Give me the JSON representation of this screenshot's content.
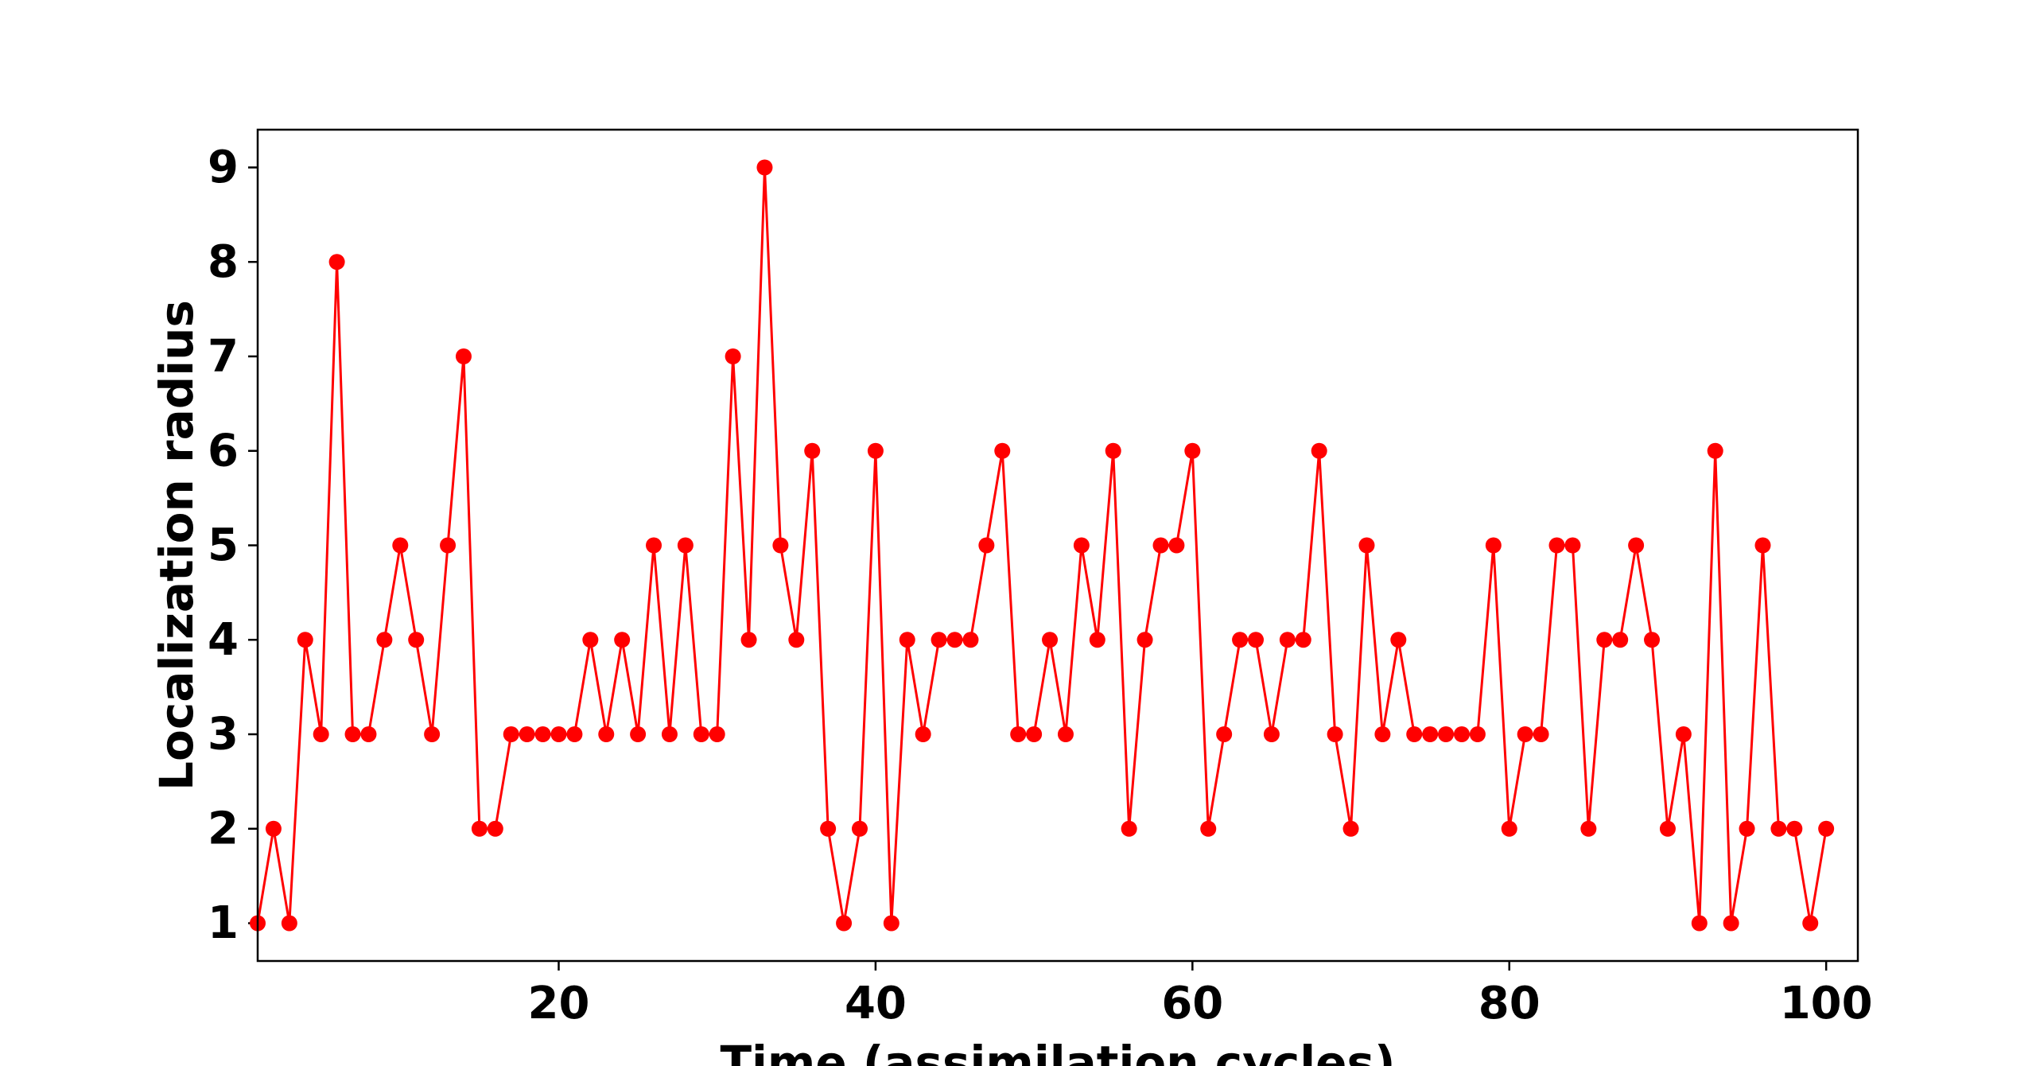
{
  "chart_data": {
    "type": "line",
    "title": "",
    "xlabel": "Time (assimilation cycles)",
    "ylabel": "Localization radius",
    "xlim": [
      1,
      102
    ],
    "ylim": [
      0.6,
      9.4
    ],
    "xticks": [
      20,
      40,
      60,
      80,
      100
    ],
    "xtick_labels": [
      "20",
      "40",
      "60",
      "80",
      "100"
    ],
    "yticks": [
      1,
      2,
      3,
      4,
      5,
      6,
      7,
      8,
      9
    ],
    "ytick_labels": [
      "1",
      "2",
      "3",
      "4",
      "5",
      "6",
      "7",
      "8",
      "9"
    ],
    "grid": false,
    "legend": "none",
    "series": [
      {
        "color": "#ff0000",
        "marker": "circle",
        "x": [
          1,
          2,
          3,
          4,
          5,
          6,
          7,
          8,
          9,
          10,
          11,
          12,
          13,
          14,
          15,
          16,
          17,
          18,
          19,
          20,
          21,
          22,
          23,
          24,
          25,
          26,
          27,
          28,
          29,
          30,
          31,
          32,
          33,
          34,
          35,
          36,
          37,
          38,
          39,
          40,
          41,
          42,
          43,
          44,
          45,
          46,
          47,
          48,
          49,
          50,
          51,
          52,
          53,
          54,
          55,
          56,
          57,
          58,
          59,
          60,
          61,
          62,
          63,
          64,
          65,
          66,
          67,
          68,
          69,
          70,
          71,
          72,
          73,
          74,
          75,
          76,
          77,
          78,
          79,
          80,
          81,
          82,
          83,
          84,
          85,
          86,
          87,
          88,
          89,
          90,
          91,
          92,
          93,
          94,
          95,
          96,
          97,
          98,
          99,
          100
        ],
        "values": [
          1,
          2,
          1,
          4,
          3,
          8,
          3,
          3,
          4,
          5,
          4,
          3,
          5,
          7,
          2,
          2,
          3,
          3,
          3,
          3,
          3,
          4,
          3,
          4,
          3,
          5,
          3,
          5,
          3,
          3,
          7,
          4,
          9,
          5,
          4,
          6,
          2,
          1,
          2,
          6,
          1,
          4,
          3,
          4,
          4,
          4,
          5,
          6,
          3,
          3,
          4,
          3,
          5,
          4,
          6,
          2,
          4,
          5,
          5,
          6,
          2,
          3,
          4,
          4,
          3,
          4,
          4,
          6,
          3,
          2,
          5,
          3,
          4,
          3,
          3,
          3,
          3,
          3,
          5,
          2,
          3,
          3,
          5,
          5,
          2,
          4,
          4,
          5,
          4,
          2,
          3,
          1,
          6,
          1,
          2,
          5,
          2,
          2,
          1,
          2
        ]
      }
    ]
  }
}
